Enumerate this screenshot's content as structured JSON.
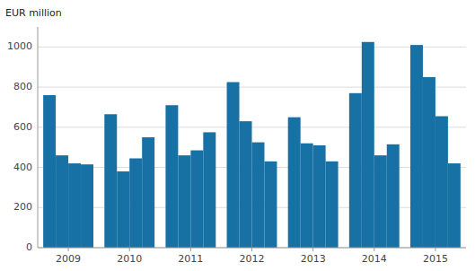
{
  "chart_data": {
    "type": "bar",
    "ylabel": "EUR million",
    "categories": [
      "2009",
      "2010",
      "2011",
      "2012",
      "2013",
      "2014",
      "2015"
    ],
    "series": [
      {
        "color": "#1871a4",
        "values": [
          760,
          665,
          710,
          825,
          650,
          770,
          1010
        ]
      },
      {
        "color": "#1871a4",
        "values": [
          460,
          380,
          460,
          630,
          520,
          1025,
          850
        ]
      },
      {
        "color": "#1871a4",
        "values": [
          420,
          445,
          485,
          525,
          510,
          460,
          655
        ]
      },
      {
        "color": "#1871a4",
        "values": [
          415,
          550,
          575,
          430,
          430,
          515,
          420
        ]
      }
    ],
    "ylim": [
      0,
      1100
    ],
    "yticks": [
      0,
      200,
      400,
      600,
      800,
      1000
    ],
    "grid": true
  }
}
